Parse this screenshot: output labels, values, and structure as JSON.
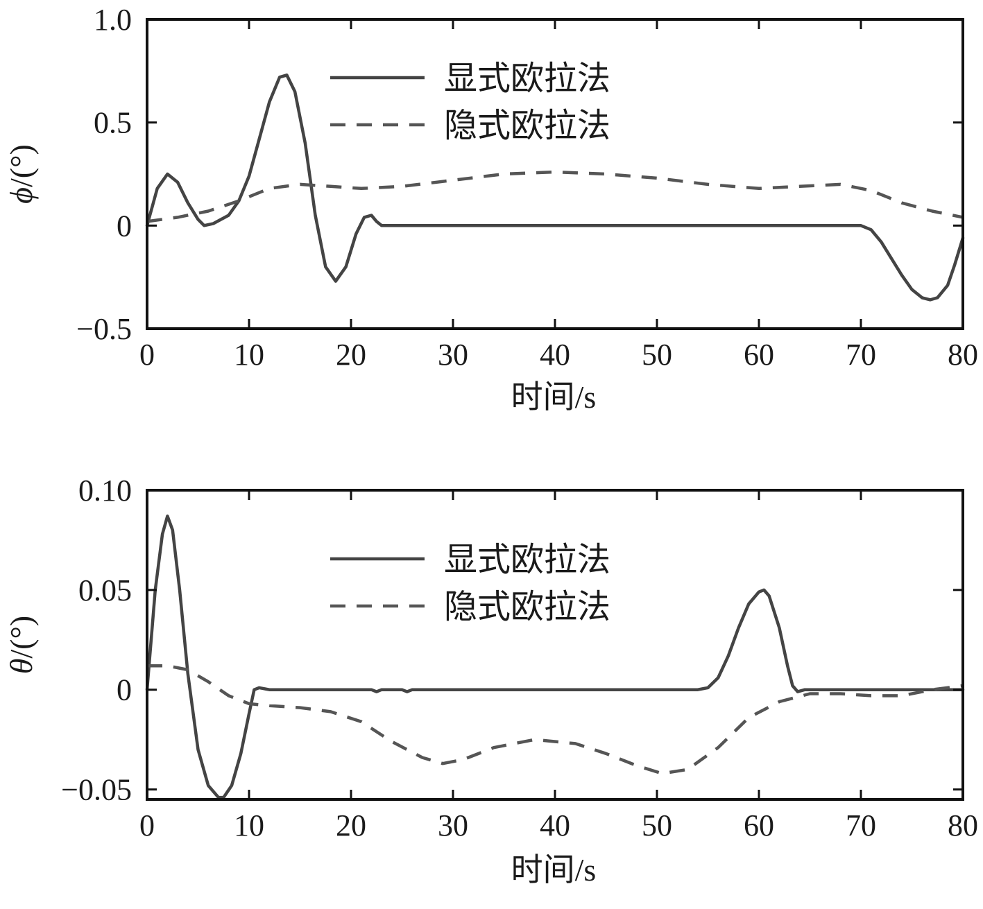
{
  "chart_data": [
    {
      "type": "line",
      "ylabel_symbol": "ϕ",
      "ylabel_unit": "/(°)",
      "xlabel": "时间/s",
      "xlim": [
        0,
        80
      ],
      "ylim": [
        -0.5,
        1.0
      ],
      "xticks": [
        0,
        10,
        20,
        30,
        40,
        50,
        60,
        70,
        80
      ],
      "xtick_labels": [
        "0",
        "10",
        "20",
        "30",
        "40",
        "50",
        "60",
        "70",
        "80"
      ],
      "yticks": [
        -0.5,
        0,
        0.5,
        1.0
      ],
      "ytick_labels": [
        "−0.5",
        "0",
        "0.5",
        "1.0"
      ],
      "legend_position": "top-center",
      "series": [
        {
          "name": "显式欧拉法",
          "style": "solid",
          "color": "#444444",
          "x": [
            0,
            1,
            2,
            3,
            4,
            5,
            5.6,
            6.5,
            8,
            9,
            10,
            11,
            12,
            13,
            13.7,
            14.5,
            15.5,
            16.5,
            17.5,
            18.5,
            19.5,
            20.5,
            21.3,
            22,
            22.5,
            23,
            24,
            30,
            40,
            50,
            60,
            68,
            70,
            71,
            72,
            73,
            74,
            75,
            76,
            76.8,
            77.5,
            78.5,
            79.2,
            80
          ],
          "y": [
            0,
            0.18,
            0.25,
            0.21,
            0.11,
            0.03,
            0.0,
            0.01,
            0.05,
            0.12,
            0.24,
            0.42,
            0.6,
            0.72,
            0.73,
            0.65,
            0.4,
            0.05,
            -0.2,
            -0.27,
            -0.2,
            -0.04,
            0.04,
            0.05,
            0.02,
            0.0,
            0.0,
            0.0,
            0.0,
            0.0,
            0.0,
            0.0,
            0.0,
            -0.02,
            -0.08,
            -0.16,
            -0.24,
            -0.31,
            -0.35,
            -0.36,
            -0.35,
            -0.29,
            -0.19,
            -0.06
          ]
        },
        {
          "name": "隐式欧拉法",
          "style": "dashed",
          "color": "#555555",
          "x": [
            0,
            3,
            6,
            9,
            12,
            15,
            18,
            21,
            25,
            30,
            35,
            40,
            45,
            50,
            55,
            60,
            64,
            68,
            71,
            74,
            77,
            80
          ],
          "y": [
            0.02,
            0.04,
            0.07,
            0.12,
            0.18,
            0.2,
            0.19,
            0.18,
            0.19,
            0.22,
            0.25,
            0.26,
            0.25,
            0.23,
            0.2,
            0.18,
            0.19,
            0.2,
            0.17,
            0.11,
            0.07,
            0.04
          ]
        }
      ]
    },
    {
      "type": "line",
      "ylabel_symbol": "θ",
      "ylabel_unit": "/(°)",
      "xlabel": "时间/s",
      "xlim": [
        0,
        80
      ],
      "ylim": [
        -0.055,
        0.1
      ],
      "xticks": [
        0,
        10,
        20,
        30,
        40,
        50,
        60,
        70,
        80
      ],
      "xtick_labels": [
        "0",
        "10",
        "20",
        "30",
        "40",
        "50",
        "60",
        "70",
        "80"
      ],
      "yticks": [
        -0.05,
        0,
        0.05,
        0.1
      ],
      "ytick_labels": [
        "−0.05",
        "0",
        "0.05",
        "0.10"
      ],
      "legend_position": "top-center",
      "series": [
        {
          "name": "显式欧拉法",
          "style": "solid",
          "color": "#444444",
          "x": [
            0,
            0.8,
            1.5,
            2,
            2.5,
            3.2,
            4,
            5,
            6,
            7,
            7.5,
            8.3,
            9.2,
            10,
            10.5,
            11,
            12,
            20,
            22,
            22.5,
            23,
            25,
            25.5,
            26,
            30,
            40,
            50,
            54,
            55,
            56,
            57,
            58,
            59,
            60,
            60.5,
            61,
            62,
            62.8,
            63.3,
            63.8,
            64.5,
            70,
            80
          ],
          "y": [
            0,
            0.05,
            0.078,
            0.087,
            0.08,
            0.05,
            0.008,
            -0.03,
            -0.048,
            -0.054,
            -0.054,
            -0.048,
            -0.032,
            -0.012,
            0.0,
            0.001,
            0.0,
            0.0,
            0.0,
            -0.001,
            0.0,
            0.0,
            -0.001,
            0.0,
            0.0,
            0.0,
            0.0,
            0.0,
            0.001,
            0.006,
            0.017,
            0.031,
            0.043,
            0.049,
            0.05,
            0.047,
            0.031,
            0.012,
            0.002,
            -0.001,
            0.0,
            0.0,
            0.0
          ]
        },
        {
          "name": "隐式欧拉法",
          "style": "dashed",
          "color": "#555555",
          "x": [
            0,
            2,
            4,
            6,
            8,
            10,
            12,
            15,
            18,
            21,
            24,
            27,
            29,
            31,
            34,
            38,
            42,
            45,
            48,
            50.5,
            53,
            56,
            59,
            62,
            65,
            68,
            71,
            74,
            77,
            80
          ],
          "y": [
            0.012,
            0.012,
            0.01,
            0.004,
            -0.003,
            -0.007,
            -0.008,
            -0.009,
            -0.011,
            -0.016,
            -0.026,
            -0.034,
            -0.037,
            -0.035,
            -0.029,
            -0.025,
            -0.027,
            -0.032,
            -0.038,
            -0.042,
            -0.04,
            -0.029,
            -0.014,
            -0.006,
            -0.002,
            -0.002,
            -0.003,
            -0.003,
            0.0,
            0.002
          ]
        }
      ]
    }
  ]
}
